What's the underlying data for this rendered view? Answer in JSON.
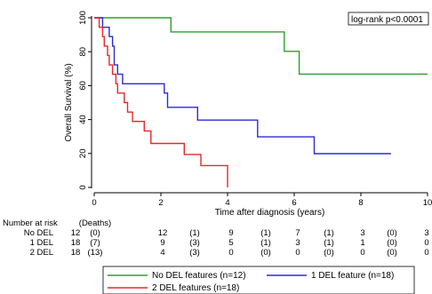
{
  "chart_data": {
    "type": "line",
    "step": true,
    "xlabel": "Time after diagnosis (years)",
    "ylabel": "Overall Survival (%)",
    "xlim": [
      0,
      10
    ],
    "ylim": [
      0,
      100
    ],
    "x_ticks": [
      "0",
      "2",
      "4",
      "6",
      "8",
      "10"
    ],
    "y_ticks": [
      "0",
      "20",
      "40",
      "60",
      "80",
      "100"
    ],
    "annotation": "log-rank p<0.0001",
    "series": [
      {
        "name": "No DEL features (n=12)",
        "color": "#2ca02c",
        "points": [
          [
            0,
            100
          ],
          [
            2.3,
            100
          ],
          [
            2.3,
            91.7
          ],
          [
            5.7,
            91.7
          ],
          [
            5.7,
            80.2
          ],
          [
            6.15,
            80.2
          ],
          [
            6.15,
            66.8
          ],
          [
            10,
            66.8
          ]
        ]
      },
      {
        "name": "1 DEL feature (n=18)",
        "color": "#2b2bd6",
        "points": [
          [
            0,
            100
          ],
          [
            0.25,
            100
          ],
          [
            0.25,
            94.4
          ],
          [
            0.45,
            94.4
          ],
          [
            0.45,
            88.9
          ],
          [
            0.55,
            88.9
          ],
          [
            0.55,
            83.3
          ],
          [
            0.6,
            83.3
          ],
          [
            0.6,
            72.2
          ],
          [
            0.7,
            72.2
          ],
          [
            0.7,
            66.7
          ],
          [
            0.85,
            66.7
          ],
          [
            0.85,
            61.1
          ],
          [
            2.1,
            61.1
          ],
          [
            2.1,
            55.6
          ],
          [
            2.2,
            55.6
          ],
          [
            2.2,
            47.2
          ],
          [
            3.1,
            47.2
          ],
          [
            3.1,
            39.7
          ],
          [
            4.9,
            39.7
          ],
          [
            4.9,
            29.8
          ],
          [
            6.6,
            29.8
          ],
          [
            6.6,
            19.9
          ],
          [
            8.9,
            19.9
          ]
        ]
      },
      {
        "name": "2 DEL features (n=18)",
        "color": "#e8282a",
        "points": [
          [
            0,
            100
          ],
          [
            0.15,
            100
          ],
          [
            0.15,
            94.4
          ],
          [
            0.25,
            94.4
          ],
          [
            0.25,
            88.9
          ],
          [
            0.3,
            88.9
          ],
          [
            0.3,
            83.3
          ],
          [
            0.4,
            83.3
          ],
          [
            0.4,
            77.8
          ],
          [
            0.45,
            77.8
          ],
          [
            0.45,
            72.2
          ],
          [
            0.55,
            72.2
          ],
          [
            0.55,
            66.7
          ],
          [
            0.65,
            66.7
          ],
          [
            0.65,
            61.1
          ],
          [
            0.7,
            61.1
          ],
          [
            0.7,
            55.6
          ],
          [
            0.9,
            55.6
          ],
          [
            0.9,
            50
          ],
          [
            1.0,
            50
          ],
          [
            1.0,
            44.4
          ],
          [
            1.15,
            44.4
          ],
          [
            1.15,
            38.9
          ],
          [
            1.5,
            38.9
          ],
          [
            1.5,
            33.3
          ],
          [
            1.7,
            33.3
          ],
          [
            1.7,
            25.9
          ],
          [
            2.7,
            25.9
          ],
          [
            2.7,
            19.4
          ],
          [
            3.2,
            19.4
          ],
          [
            3.2,
            12.9
          ],
          [
            4.0,
            12.9
          ],
          [
            4.0,
            0
          ]
        ]
      }
    ],
    "risk_table": {
      "header": "Number at risk",
      "deaths_header": "(Deaths)",
      "rows": [
        {
          "label": "No DEL",
          "values": [
            "12",
            "(0)",
            "12",
            "(1)",
            "9",
            "(1)",
            "7",
            "(1)",
            "3",
            "(0)",
            "3"
          ]
        },
        {
          "label": "1 DEL",
          "values": [
            "18",
            "(7)",
            "9",
            "(3)",
            "5",
            "(1)",
            "3",
            "(1)",
            "1",
            "(0)",
            "0"
          ]
        },
        {
          "label": "2 DEL",
          "values": [
            "18",
            "(13)",
            "4",
            "(3)",
            "0",
            "(0)",
            "0",
            "(0)",
            "0",
            "(0)",
            "0"
          ]
        }
      ]
    },
    "legend": {
      "placement": "bottom",
      "entries": [
        {
          "label": "No DEL features (n=12)",
          "color": "#2ca02c"
        },
        {
          "label": "1 DEL feature (n=18)",
          "color": "#2b2bd6"
        },
        {
          "label": "2 DEL features (n=18)",
          "color": "#e8282a"
        }
      ]
    }
  }
}
